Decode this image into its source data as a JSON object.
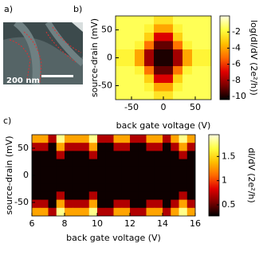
{
  "panel_a": {
    "label": "a)",
    "scale_bar": "200 nm"
  },
  "chart_data": [
    {
      "type": "heatmap",
      "label": "b)",
      "xlabel": "back gate voltage (V)",
      "ylabel": "source-drain (mV)",
      "colorbar_label": "log(dI/dV (2e²/h))",
      "xlim": [
        -75,
        75
      ],
      "ylim": [
        -75,
        75
      ],
      "xticks": [
        -50,
        0,
        50
      ],
      "yticks": [
        -50,
        0,
        50
      ],
      "clim": [
        -10.4,
        0
      ],
      "cticks": [
        -2,
        -4,
        -6,
        -8,
        -10
      ],
      "colormap": [
        "#000000",
        "#7a0000",
        "#e00000",
        "#ff6a00",
        "#ffc000",
        "#ffff40",
        "#ffffe0"
      ],
      "x": [
        -67.5,
        -52.5,
        -37.5,
        -22.5,
        -7.5,
        7.5,
        22.5,
        37.5,
        52.5,
        67.5
      ],
      "y": [
        67.5,
        52.5,
        37.5,
        22.5,
        7.5,
        -7.5,
        -22.5,
        -37.5,
        -52.5,
        -67.5
      ],
      "z": [
        [
          -1.5,
          -1.5,
          -1.5,
          -1.5,
          -2.5,
          -2.5,
          -1.5,
          -1.5,
          -1.5,
          -1.5
        ],
        [
          -1.5,
          -1.5,
          -1.5,
          -2,
          -4,
          -4,
          -2,
          -1.5,
          -1.5,
          -1.5
        ],
        [
          -1.5,
          -1.5,
          -1.5,
          -3,
          -7,
          -7,
          -3,
          -1.5,
          -1.5,
          -1.5
        ],
        [
          -1.5,
          -1.5,
          -2,
          -5,
          -9,
          -9,
          -5,
          -2,
          -1.5,
          -1.5
        ],
        [
          -2,
          -2,
          -4,
          -8,
          -10,
          -10,
          -8,
          -4,
          -2,
          -2
        ],
        [
          -2,
          -2,
          -4,
          -8,
          -10,
          -10,
          -8,
          -4,
          -2,
          -2
        ],
        [
          -1.5,
          -1.5,
          -2,
          -5,
          -9,
          -9,
          -5,
          -2,
          -1.5,
          -1.5
        ],
        [
          -1.5,
          -1.5,
          -1.5,
          -3,
          -7,
          -7,
          -3,
          -1.5,
          -1.5,
          -1.5
        ],
        [
          -1.5,
          -1.5,
          -1.5,
          -2,
          -4,
          -4,
          -2,
          -1.5,
          -1.5,
          -1.5
        ],
        [
          -1.5,
          -1.5,
          -1.5,
          -1.5,
          -2.5,
          -2.5,
          -1.5,
          -1.5,
          -1.5,
          -1.5
        ]
      ]
    },
    {
      "type": "heatmap",
      "label": "c)",
      "xlabel": "back gate voltage (V)",
      "ylabel": "source-drain (mV)",
      "colorbar_label": "dI/dV (2e²/h)",
      "xlim": [
        6,
        16
      ],
      "ylim": [
        -75,
        75
      ],
      "xticks": [
        6,
        8,
        10,
        12,
        14,
        16
      ],
      "yticks": [
        -50,
        0,
        50
      ],
      "clim": [
        0.27,
        1.95
      ],
      "cticks": [
        0.5,
        1,
        1.5
      ],
      "colormap": [
        "#000000",
        "#7a0000",
        "#e00000",
        "#ff6a00",
        "#ffc000",
        "#ffff40",
        "#ffffe0"
      ],
      "x": [
        6.25,
        6.75,
        7.25,
        7.75,
        8.25,
        8.75,
        9.25,
        9.75,
        10.25,
        10.75,
        11.25,
        11.75,
        12.25,
        12.75,
        13.25,
        13.75,
        14.25,
        14.75,
        15.25,
        15.75
      ],
      "y": [
        67.5,
        52.5,
        37.5,
        22.5,
        7.5,
        -7.5,
        -22.5,
        -37.5,
        -52.5,
        -67.5
      ],
      "z": [
        [
          1.3,
          1.3,
          0.7,
          1.8,
          1.3,
          1.3,
          1.3,
          1.8,
          0.7,
          0.7,
          1.3,
          1.3,
          0.7,
          0.7,
          1.3,
          1.3,
          0.7,
          1.3,
          1.8,
          1.3
        ],
        [
          0.7,
          0.7,
          0.3,
          1.3,
          0.7,
          0.7,
          0.7,
          1.3,
          0.3,
          0.3,
          0.7,
          0.7,
          0.3,
          0.3,
          0.7,
          0.7,
          0.3,
          0.7,
          1.3,
          0.7
        ],
        [
          0.3,
          0.3,
          0.3,
          0.7,
          0.3,
          0.3,
          0.3,
          0.7,
          0.3,
          0.3,
          0.3,
          0.3,
          0.3,
          0.3,
          0.3,
          0.3,
          0.3,
          0.3,
          0.7,
          0.3
        ],
        [
          0.3,
          0.3,
          0.3,
          0.3,
          0.3,
          0.3,
          0.3,
          0.3,
          0.3,
          0.3,
          0.3,
          0.3,
          0.3,
          0.3,
          0.3,
          0.3,
          0.3,
          0.3,
          0.3,
          0.3
        ],
        [
          0.3,
          0.3,
          0.3,
          0.3,
          0.3,
          0.3,
          0.3,
          0.3,
          0.3,
          0.3,
          0.3,
          0.3,
          0.3,
          0.3,
          0.3,
          0.3,
          0.3,
          0.3,
          0.3,
          0.3
        ],
        [
          0.3,
          0.3,
          0.3,
          0.3,
          0.3,
          0.3,
          0.3,
          0.3,
          0.3,
          0.3,
          0.3,
          0.3,
          0.3,
          0.3,
          0.3,
          0.3,
          0.3,
          0.3,
          0.3,
          0.3
        ],
        [
          0.3,
          0.3,
          0.3,
          0.3,
          0.3,
          0.3,
          0.3,
          0.3,
          0.3,
          0.3,
          0.3,
          0.3,
          0.3,
          0.3,
          0.3,
          0.3,
          0.3,
          0.3,
          0.3,
          0.3
        ],
        [
          0.3,
          0.3,
          0.3,
          0.7,
          0.3,
          0.3,
          0.3,
          0.7,
          0.3,
          0.3,
          0.3,
          0.3,
          0.3,
          0.3,
          0.3,
          0.3,
          0.3,
          0.3,
          0.7,
          0.3
        ],
        [
          0.7,
          0.7,
          0.3,
          1.3,
          0.7,
          0.7,
          0.7,
          1.3,
          0.3,
          0.3,
          0.7,
          0.7,
          0.3,
          0.3,
          0.7,
          0.7,
          0.3,
          0.7,
          1.3,
          0.7
        ],
        [
          1.3,
          1.3,
          0.7,
          1.8,
          1.3,
          1.3,
          1.3,
          1.8,
          0.7,
          0.7,
          1.3,
          1.3,
          0.7,
          0.7,
          1.3,
          1.3,
          0.7,
          1.3,
          1.8,
          1.3
        ]
      ]
    }
  ]
}
